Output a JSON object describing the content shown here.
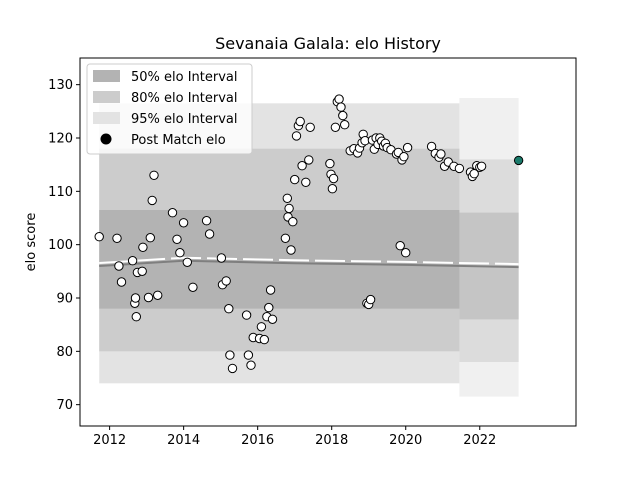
{
  "chart_data": {
    "type": "scatter",
    "title": "Sevanaia Galala: elo History",
    "xlabel": "",
    "ylabel": "elo score",
    "xlim": [
      2011.2,
      2024.6
    ],
    "ylim": [
      66,
      135
    ],
    "x_ticks": [
      2012,
      2014,
      2016,
      2018,
      2020,
      2022
    ],
    "y_ticks": [
      70,
      80,
      90,
      100,
      110,
      120,
      130
    ],
    "grid": false,
    "legend_position": "top-left",
    "legend": [
      {
        "label": "50% elo Interval",
        "kind": "band",
        "color": "#b3b3b3"
      },
      {
        "label": "80% elo Interval",
        "kind": "band",
        "color": "#cccccc"
      },
      {
        "label": "95% elo Interval",
        "kind": "band",
        "color": "#e3e3e3"
      },
      {
        "label": "Post Match elo",
        "kind": "marker",
        "color": "#000000"
      }
    ],
    "colors": {
      "band50": "#b3b3b3",
      "band80": "#cccccc",
      "band95": "#e3e3e3",
      "mean_line": "#7f7f7f",
      "latest_point": "#1a7a6a"
    },
    "bands": [
      {
        "name": "50% elo Interval",
        "x": [
          2011.72,
          2021.45
        ],
        "low": 88,
        "high": 106.5
      },
      {
        "name": "80% elo Interval",
        "x": [
          2011.72,
          2021.45
        ],
        "low": 80,
        "high": 118
      },
      {
        "name": "95% elo Interval",
        "x": [
          2011.72,
          2021.45
        ],
        "low": 74,
        "high": 126.5
      }
    ],
    "future_bands": [
      {
        "x": [
          2021.45,
          2023.05
        ],
        "low_start": 86,
        "low_end": 86,
        "high_start": 106,
        "high_end": 106
      },
      {
        "x": [
          2021.45,
          2023.05
        ],
        "low_start": 78,
        "low_end": 78,
        "high_start": 116,
        "high_end": 116
      },
      {
        "x": [
          2021.45,
          2023.05
        ],
        "low_start": 71.5,
        "low_end": 71.5,
        "high_start": 127.5,
        "high_end": 127.5
      }
    ],
    "mean_line": {
      "x": [
        2011.72,
        2014,
        2017,
        2020,
        2023.05
      ],
      "y": [
        96,
        97,
        96.5,
        96.2,
        95.8
      ]
    },
    "latest_point": {
      "x": 2023.05,
      "y": 115.8
    },
    "series": [
      {
        "x": [
          2011.72,
          2012.2,
          2012.25,
          2012.32,
          2012.62,
          2012.68,
          2012.7,
          2012.72,
          2012.75,
          2012.88,
          2012.9,
          2013.05,
          2013.1,
          2013.15,
          2013.2,
          2013.3,
          2013.7,
          2013.82,
          2013.9,
          2014.0,
          2014.1,
          2014.25,
          2014.62,
          2014.7,
          2015.02,
          2015.05,
          2015.15,
          2015.22,
          2015.25,
          2015.32,
          2015.7,
          2015.75,
          2015.82,
          2015.88,
          2016.05,
          2016.1,
          2016.18,
          2016.25,
          2016.3,
          2016.35,
          2016.4,
          2016.75,
          2016.8,
          2016.82,
          2016.85,
          2016.9,
          2016.95,
          2017.0,
          2017.05,
          2017.1,
          2017.15,
          2017.2,
          2017.3,
          2017.38,
          2017.42,
          2017.95,
          2017.98,
          2018.02,
          2018.05,
          2018.1,
          2018.15,
          2018.2,
          2018.25,
          2018.3,
          2018.35,
          2018.5,
          2018.6,
          2018.7,
          2018.75,
          2018.82,
          2018.85,
          2018.9,
          2018.95,
          2019.0,
          2019.05,
          2019.1,
          2019.15,
          2019.2,
          2019.25,
          2019.3,
          2019.35,
          2019.4,
          2019.45,
          2019.5,
          2019.6,
          2019.75,
          2019.8,
          2019.85,
          2019.9,
          2019.95,
          2020.0,
          2020.05,
          2020.7,
          2020.8,
          2020.9,
          2020.95,
          2021.05,
          2021.15,
          2021.3,
          2021.45,
          2021.75,
          2021.8,
          2021.85,
          2021.92,
          2022.0,
          2022.05
        ],
        "y": [
          101.5,
          101.2,
          96,
          93,
          97,
          89,
          90,
          86.5,
          94.8,
          95,
          99.5,
          90.1,
          101.3,
          108.3,
          113,
          90.5,
          106,
          101,
          98.5,
          104.1,
          96.7,
          92,
          104.5,
          102,
          97.5,
          92.5,
          93.2,
          88,
          79.3,
          76.8,
          86.8,
          79.3,
          77.4,
          82.6,
          82.4,
          84.6,
          82.2,
          86.5,
          88.2,
          91.5,
          86,
          101.2,
          108.7,
          105.2,
          106.8,
          99,
          104.3,
          112.2,
          120.4,
          122.3,
          123.1,
          114.8,
          111.7,
          115.9,
          122,
          115.2,
          113.2,
          110.5,
          112.4,
          122,
          126.8,
          127.3,
          125.8,
          124.2,
          122.5,
          117.6,
          118,
          117.2,
          118.1,
          119.1,
          120.7,
          119.5,
          89,
          88.8,
          89.7,
          119.6,
          117.9,
          120,
          118.8,
          120,
          119.4,
          118.5,
          119,
          118.2,
          117.8,
          117,
          117.3,
          99.8,
          115.9,
          116.5,
          98.5,
          118.2,
          118.4,
          117.1,
          116.4,
          117,
          114.7,
          115.5,
          114.7,
          114.3,
          113.6,
          112.8,
          113.3,
          114.8,
          114.5,
          114.7
        ],
        "name": "Post Match elo"
      }
    ]
  }
}
